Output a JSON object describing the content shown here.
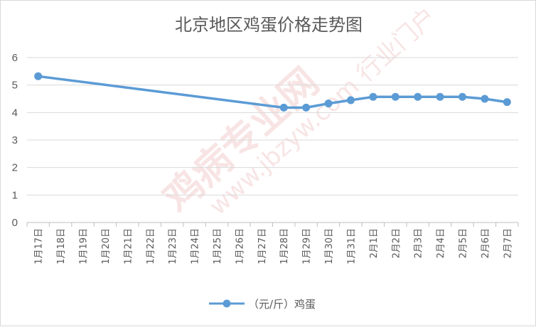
{
  "chart_data": {
    "type": "line",
    "title": "北京地区鸡蛋价格走势图",
    "categories": [
      "1月17日",
      "1月18日",
      "1月19日",
      "1月20日",
      "1月21日",
      "1月22日",
      "1月23日",
      "1月24日",
      "1月25日",
      "1月26日",
      "1月27日",
      "1月28日",
      "1月29日",
      "1月30日",
      "1月31日",
      "2月1日",
      "2月2日",
      "2月3日",
      "2月4日",
      "2月5日",
      "2月6日",
      "2月7日"
    ],
    "series": [
      {
        "name": "（元/斤）鸡蛋",
        "color": "#5b9bd5",
        "values": [
          5.32,
          null,
          null,
          null,
          null,
          null,
          null,
          null,
          null,
          null,
          null,
          4.18,
          4.18,
          4.33,
          4.45,
          4.57,
          4.57,
          4.57,
          4.57,
          4.57,
          4.5,
          4.38
        ]
      }
    ],
    "yticks": [
      "0",
      "1",
      "2",
      "3",
      "4",
      "5",
      "6"
    ],
    "ylim": [
      0,
      6
    ],
    "grid": true,
    "legend_position": "bottom",
    "watermark": "鸡病专业网 www.jbzyw.com 行业门户"
  }
}
